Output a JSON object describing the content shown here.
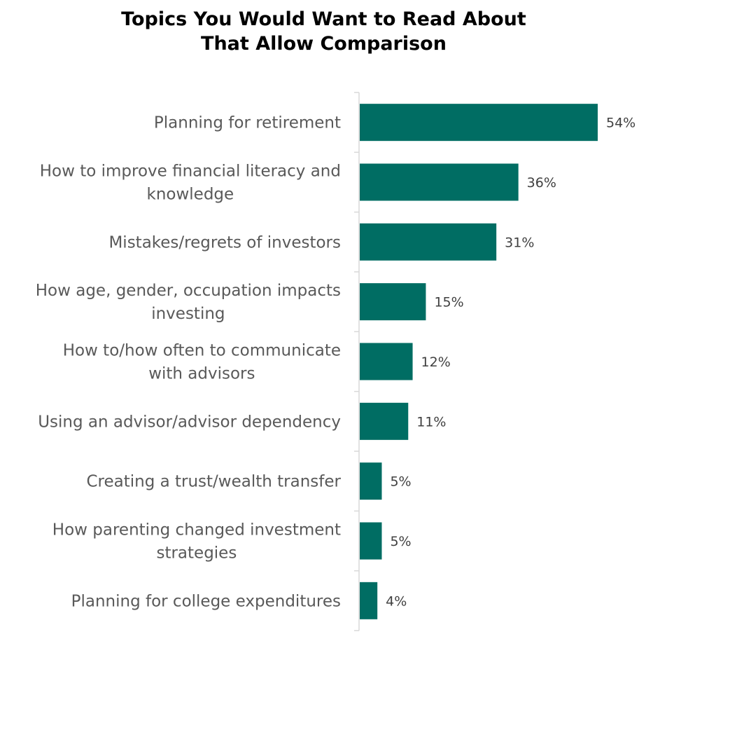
{
  "chart_data": {
    "type": "bar",
    "orientation": "horizontal",
    "title": "Topics You Would Want to Read About\nThat Allow Comparison",
    "xlabel": "",
    "ylabel": "",
    "categories": [
      "Planning for retirement",
      "How to improve financial literacy and knowledge",
      "Mistakes/regrets of investors",
      "How age, gender, occupation impacts investing",
      "How to/how often to communicate with advisors",
      "Using an advisor/advisor dependency",
      "Creating a trust/wealth transfer",
      "How parenting changed investment strategies",
      "Planning for college expenditures"
    ],
    "values": [
      54,
      36,
      31,
      15,
      12,
      11,
      5,
      5,
      4
    ],
    "data_labels": [
      "54%",
      "36%",
      "31%",
      "15%",
      "12%",
      "11%",
      "5%",
      "5%",
      "4%"
    ],
    "value_unit": "%",
    "xlim": [
      0,
      80
    ],
    "grid": false,
    "legend": "none",
    "bar_color": "#006D63",
    "label_color": "#595959",
    "value_label_color": "#404040",
    "axis_color": "#D9D9D9"
  }
}
